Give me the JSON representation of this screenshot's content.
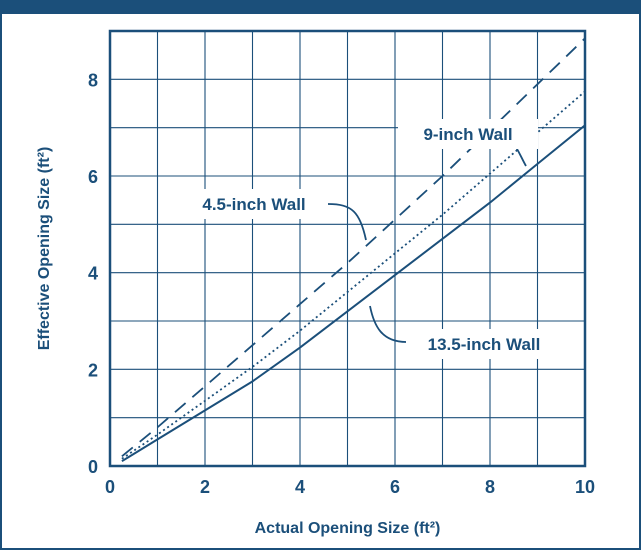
{
  "colors": {
    "navy": "#1b4f7a",
    "grid": "#1b4f7a",
    "background": "#ffffff"
  },
  "chart_data": {
    "type": "line",
    "title": "",
    "xlabel": "Actual Opening Size (ft²)",
    "ylabel": "Effective Opening Size (ft²)",
    "xlim": [
      0,
      10
    ],
    "ylim": [
      0,
      9
    ],
    "x_ticks": [
      "0",
      "2",
      "4",
      "6",
      "8",
      "10"
    ],
    "y_ticks": [
      "0",
      "2",
      "4",
      "6",
      "8"
    ],
    "grid": true,
    "series": [
      {
        "name": "4.5-inch Wall",
        "style": "dashed",
        "x": [
          0.25,
          1,
          2,
          3,
          4,
          5,
          6,
          7,
          8,
          9,
          10
        ],
        "y": [
          0.2,
          0.8,
          1.65,
          2.5,
          3.35,
          4.2,
          5.1,
          6.0,
          6.95,
          7.9,
          8.85
        ]
      },
      {
        "name": "9-inch Wall",
        "style": "dotted",
        "x": [
          0.25,
          1,
          2,
          3,
          4,
          5,
          6,
          7,
          8,
          9,
          10
        ],
        "y": [
          0.15,
          0.65,
          1.35,
          2.05,
          2.8,
          3.6,
          4.4,
          5.2,
          6.05,
          6.9,
          7.75
        ]
      },
      {
        "name": "13.5-inch Wall",
        "style": "solid",
        "x": [
          0.25,
          1,
          2,
          3,
          4,
          5,
          6,
          7,
          8,
          9,
          10
        ],
        "y": [
          0.1,
          0.55,
          1.15,
          1.75,
          2.45,
          3.2,
          3.95,
          4.7,
          5.45,
          6.25,
          7.05
        ]
      }
    ],
    "annotations": [
      {
        "text": "9-inch Wall",
        "series": "9-inch Wall"
      },
      {
        "text": "4.5-inch Wall",
        "series": "4.5-inch Wall"
      },
      {
        "text": "13.5-inch Wall",
        "series": "13.5-inch Wall"
      }
    ]
  }
}
